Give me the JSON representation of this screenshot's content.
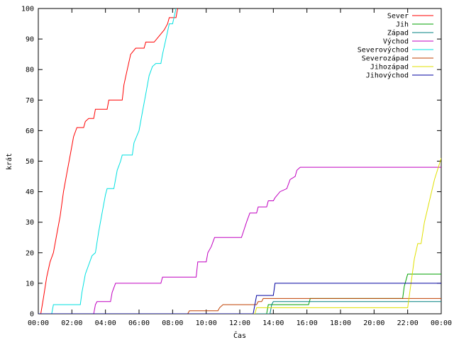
{
  "chart_data": {
    "type": "line",
    "xlabel": "Čas",
    "ylabel": "krát",
    "xlim": [
      0,
      24
    ],
    "ylim": [
      0,
      100
    ],
    "grid": false,
    "legend_position": "top-right",
    "x_ticks": [
      {
        "value": 0,
        "label": "00:00"
      },
      {
        "value": 2,
        "label": "02:00"
      },
      {
        "value": 4,
        "label": "04:00"
      },
      {
        "value": 6,
        "label": "06:00"
      },
      {
        "value": 8,
        "label": "08:00"
      },
      {
        "value": 10,
        "label": "10:00"
      },
      {
        "value": 12,
        "label": "12:00"
      },
      {
        "value": 14,
        "label": "14:00"
      },
      {
        "value": 16,
        "label": "16:00"
      },
      {
        "value": 18,
        "label": "18:00"
      },
      {
        "value": 20,
        "label": "20:00"
      },
      {
        "value": 22,
        "label": "22:00"
      },
      {
        "value": 24,
        "label": "00:00"
      }
    ],
    "y_ticks": [
      0,
      10,
      20,
      30,
      40,
      50,
      60,
      70,
      80,
      90,
      100
    ],
    "series": [
      {
        "name": "Sever",
        "color": "#ff0000",
        "points": [
          [
            0,
            0
          ],
          [
            0.15,
            0
          ],
          [
            0.3,
            5
          ],
          [
            0.5,
            12
          ],
          [
            0.7,
            17
          ],
          [
            0.9,
            20
          ],
          [
            1.1,
            26
          ],
          [
            1.3,
            32
          ],
          [
            1.5,
            40
          ],
          [
            1.7,
            46
          ],
          [
            1.9,
            52
          ],
          [
            2.1,
            58
          ],
          [
            2.3,
            61
          ],
          [
            2.7,
            61
          ],
          [
            2.8,
            63
          ],
          [
            3.0,
            64
          ],
          [
            3.3,
            64
          ],
          [
            3.4,
            67
          ],
          [
            4.1,
            67
          ],
          [
            4.2,
            70
          ],
          [
            5.0,
            70
          ],
          [
            5.1,
            75
          ],
          [
            5.3,
            80
          ],
          [
            5.5,
            85
          ],
          [
            5.8,
            87
          ],
          [
            6.3,
            87
          ],
          [
            6.4,
            89
          ],
          [
            6.9,
            89
          ],
          [
            7.2,
            91
          ],
          [
            7.5,
            93
          ],
          [
            7.7,
            95
          ],
          [
            7.8,
            97
          ],
          [
            8.2,
            97
          ],
          [
            8.3,
            100
          ]
        ]
      },
      {
        "name": "Jih",
        "color": "#00a000",
        "points": [
          [
            0,
            0
          ],
          [
            13.6,
            0
          ],
          [
            13.7,
            3
          ],
          [
            16.1,
            3
          ],
          [
            16.2,
            5
          ],
          [
            21.7,
            5
          ],
          [
            21.8,
            9
          ],
          [
            22.0,
            13
          ],
          [
            24,
            13
          ]
        ]
      },
      {
        "name": "Západ",
        "color": "#008080",
        "points": [
          [
            0,
            0
          ],
          [
            13.8,
            0
          ],
          [
            13.9,
            3
          ],
          [
            14.0,
            4
          ],
          [
            24,
            4
          ]
        ]
      },
      {
        "name": "Východ",
        "color": "#c000c0",
        "points": [
          [
            0,
            0
          ],
          [
            3.3,
            0
          ],
          [
            3.4,
            3
          ],
          [
            3.5,
            4
          ],
          [
            4.3,
            4
          ],
          [
            4.4,
            7
          ],
          [
            4.6,
            10
          ],
          [
            7.3,
            10
          ],
          [
            7.4,
            12
          ],
          [
            9.4,
            12
          ],
          [
            9.5,
            17
          ],
          [
            10.0,
            17
          ],
          [
            10.1,
            20
          ],
          [
            10.3,
            22
          ],
          [
            10.5,
            25
          ],
          [
            12.1,
            25
          ],
          [
            12.4,
            30
          ],
          [
            12.6,
            33
          ],
          [
            13.0,
            33
          ],
          [
            13.1,
            35
          ],
          [
            13.6,
            35
          ],
          [
            13.7,
            37
          ],
          [
            14.0,
            37
          ],
          [
            14.1,
            38
          ],
          [
            14.4,
            40
          ],
          [
            14.8,
            41
          ],
          [
            15.0,
            44
          ],
          [
            15.3,
            45
          ],
          [
            15.4,
            47
          ],
          [
            15.6,
            48
          ],
          [
            24,
            48
          ]
        ]
      },
      {
        "name": "Severovýchod",
        "color": "#00e0e0",
        "points": [
          [
            0,
            0
          ],
          [
            0.8,
            0
          ],
          [
            0.9,
            3
          ],
          [
            2.5,
            3
          ],
          [
            2.6,
            7
          ],
          [
            2.8,
            13
          ],
          [
            3.0,
            16
          ],
          [
            3.2,
            19
          ],
          [
            3.4,
            20
          ],
          [
            3.6,
            27
          ],
          [
            3.8,
            33
          ],
          [
            4.0,
            39
          ],
          [
            4.1,
            41
          ],
          [
            4.5,
            41
          ],
          [
            4.7,
            47
          ],
          [
            4.9,
            50
          ],
          [
            5.0,
            52
          ],
          [
            5.6,
            52
          ],
          [
            5.7,
            56
          ],
          [
            6.0,
            60
          ],
          [
            6.2,
            66
          ],
          [
            6.4,
            72
          ],
          [
            6.6,
            78
          ],
          [
            6.8,
            81
          ],
          [
            7.0,
            82
          ],
          [
            7.3,
            82
          ],
          [
            7.4,
            85
          ],
          [
            7.6,
            90
          ],
          [
            7.8,
            95
          ],
          [
            8.0,
            95
          ],
          [
            8.2,
            100
          ]
        ]
      },
      {
        "name": "Severozápad",
        "color": "#c04000",
        "points": [
          [
            0,
            0
          ],
          [
            8.9,
            0
          ],
          [
            9.0,
            1
          ],
          [
            10.7,
            1
          ],
          [
            10.8,
            2
          ],
          [
            11.0,
            3
          ],
          [
            13.0,
            3
          ],
          [
            13.1,
            4
          ],
          [
            13.3,
            4
          ],
          [
            13.4,
            5
          ],
          [
            24,
            5
          ]
        ]
      },
      {
        "name": "Jihozápad",
        "color": "#e0e000",
        "points": [
          [
            0,
            0
          ],
          [
            12.9,
            0
          ],
          [
            13.0,
            2
          ],
          [
            22.0,
            2
          ],
          [
            22.2,
            10
          ],
          [
            22.4,
            18
          ],
          [
            22.6,
            23
          ],
          [
            22.8,
            23
          ],
          [
            23.0,
            30
          ],
          [
            23.3,
            37
          ],
          [
            23.6,
            44
          ],
          [
            24,
            51
          ]
        ]
      },
      {
        "name": "Jihovýchod",
        "color": "#0000a0",
        "points": [
          [
            0,
            0
          ],
          [
            12.8,
            0
          ],
          [
            12.9,
            3
          ],
          [
            13.0,
            6
          ],
          [
            14.0,
            6
          ],
          [
            14.1,
            10
          ],
          [
            24,
            10
          ]
        ]
      }
    ]
  }
}
